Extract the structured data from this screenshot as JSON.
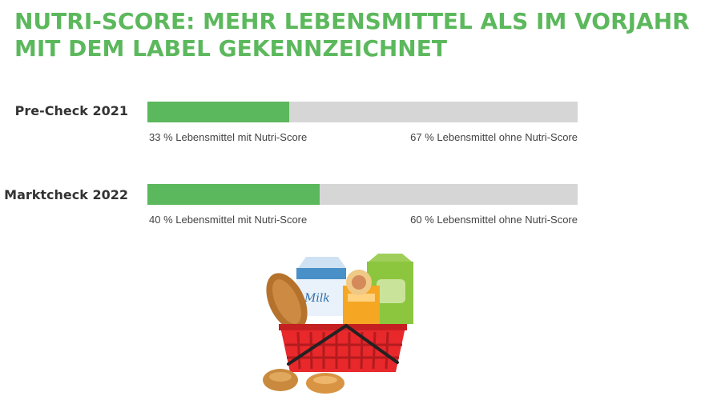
{
  "title": {
    "line1": "NUTRI-SCORE: MEHR LEBENSMITTEL ALS IM VORJAHR",
    "line2": "MIT DEM LABEL GEKENNZEICHNET"
  },
  "colors": {
    "accent": "#5cb85c",
    "track": "#d6d6d6",
    "label_text": "#333333"
  },
  "rows": [
    {
      "label": "Pre-Check 2021",
      "with_text": "33 % Lebensmittel mit Nutri-Score",
      "without_text": "67 % Lebensmittel ohne Nutri-Score"
    },
    {
      "label": "Marktcheck 2022",
      "with_text": "40 % Lebensmittel mit Nutri-Score",
      "without_text": "60 % Lebensmittel ohne Nutri-Score"
    }
  ],
  "chart_data": {
    "type": "bar",
    "orientation": "horizontal-stacked",
    "categories": [
      "Pre-Check 2021",
      "Marktcheck 2022"
    ],
    "series": [
      {
        "name": "Lebensmittel mit Nutri-Score",
        "values": [
          33,
          40
        ]
      },
      {
        "name": "Lebensmittel ohne Nutri-Score",
        "values": [
          67,
          60
        ]
      }
    ],
    "xlim": [
      0,
      100
    ],
    "unit": "%",
    "grid": false
  },
  "illustration": {
    "icon": "shopping-basket-icon",
    "milk_label": "Milk"
  }
}
